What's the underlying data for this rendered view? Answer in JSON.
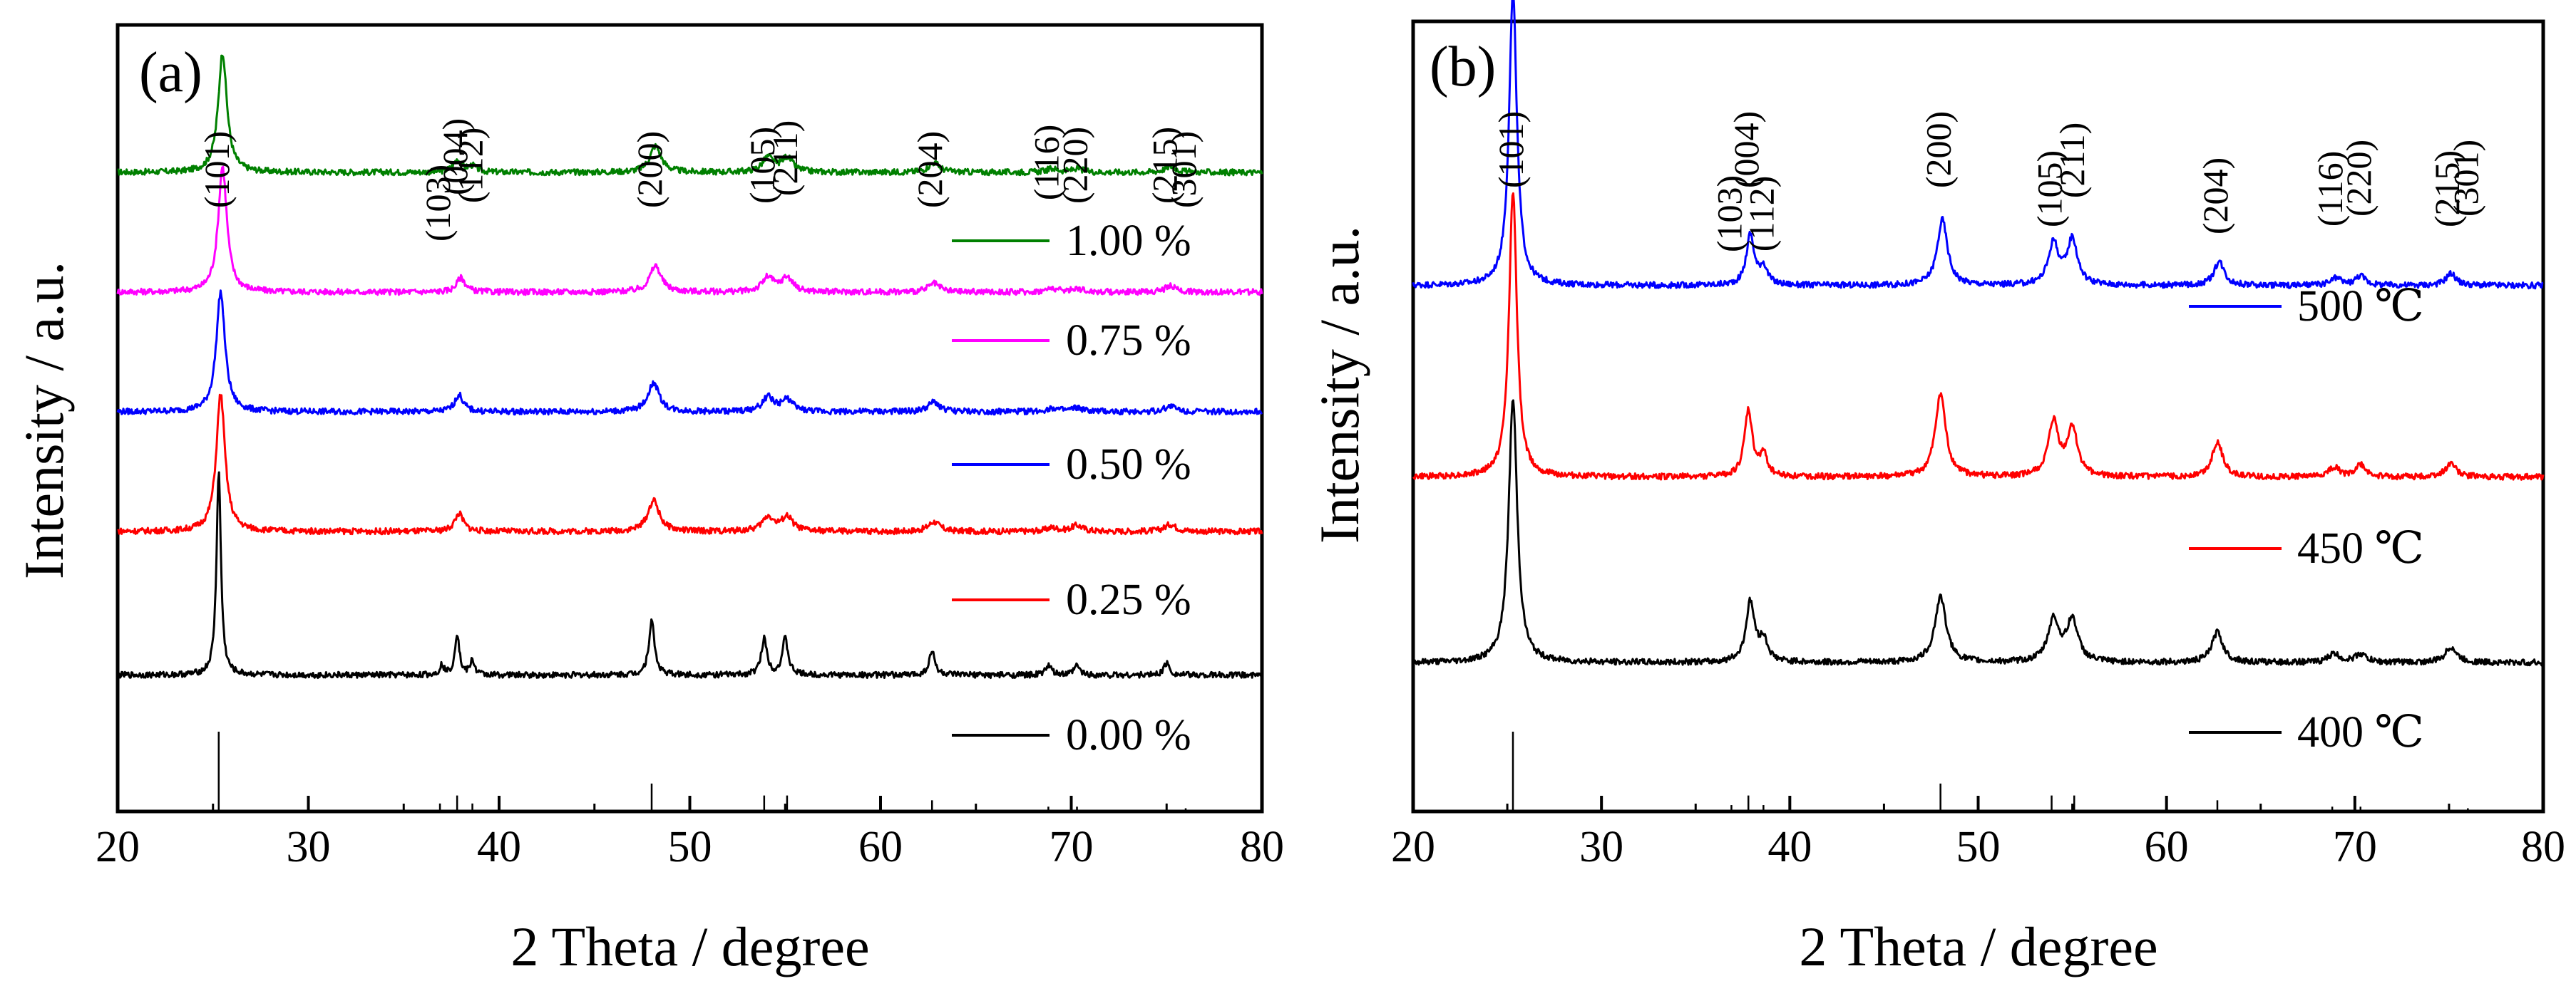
{
  "chart_data": [
    {
      "type": "line",
      "panel_label": "(a)",
      "xlabel": "2 Theta  / degree",
      "ylabel": "Intensity / a.u.",
      "xlim": [
        20,
        80
      ],
      "xticks": [
        "20",
        "30",
        "40",
        "50",
        "60",
        "70",
        "80"
      ],
      "yticks": [],
      "grid": false,
      "legend_position": "right, stacked beside traces",
      "reflections": [
        {
          "label": "(101)",
          "two_theta": 25.3
        },
        {
          "label": "(103)",
          "two_theta": 36.9
        },
        {
          "label": "(004)",
          "two_theta": 37.8
        },
        {
          "label": "(112)",
          "two_theta": 38.6
        },
        {
          "label": "(200)",
          "two_theta": 48.0
        },
        {
          "label": "(105)",
          "two_theta": 53.9
        },
        {
          "label": "(211)",
          "two_theta": 55.1
        },
        {
          "label": "(204)",
          "two_theta": 62.7
        },
        {
          "label": "(116)",
          "two_theta": 68.8
        },
        {
          "label": "(220)",
          "two_theta": 70.3
        },
        {
          "label": "(215)",
          "two_theta": 75.0
        },
        {
          "label": "(301)",
          "two_theta": 76.0
        }
      ],
      "reference_peaks": [
        {
          "two_theta": 25.3,
          "intensity": 1.0
        },
        {
          "two_theta": 36.9,
          "intensity": 0.1
        },
        {
          "two_theta": 37.8,
          "intensity": 0.2
        },
        {
          "two_theta": 38.6,
          "intensity": 0.1
        },
        {
          "two_theta": 48.0,
          "intensity": 0.35
        },
        {
          "two_theta": 53.9,
          "intensity": 0.2
        },
        {
          "two_theta": 55.1,
          "intensity": 0.2
        },
        {
          "two_theta": 62.7,
          "intensity": 0.14
        },
        {
          "two_theta": 68.8,
          "intensity": 0.06
        },
        {
          "two_theta": 70.3,
          "intensity": 0.06
        },
        {
          "two_theta": 75.0,
          "intensity": 0.1
        },
        {
          "two_theta": 76.0,
          "intensity": 0.04
        }
      ],
      "series": [
        {
          "name": "1.00 %",
          "color": "#008000",
          "offset": 4.0,
          "width": 0.55,
          "peaks": [
            [
              25.5,
              1.0
            ],
            [
              37.8,
              0.1
            ],
            [
              38.6,
              0.05
            ],
            [
              48.2,
              0.22
            ],
            [
              54.1,
              0.12
            ],
            [
              55.1,
              0.12
            ],
            [
              62.8,
              0.08
            ],
            [
              69.0,
              0.03
            ],
            [
              70.3,
              0.03
            ],
            [
              75.2,
              0.05
            ]
          ]
        },
        {
          "name": "0.75 %",
          "color": "#ff00ff",
          "offset": 3.0,
          "width": 0.55,
          "peaks": [
            [
              25.5,
              1.05
            ],
            [
              38.0,
              0.12
            ],
            [
              48.2,
              0.22
            ],
            [
              54.1,
              0.12
            ],
            [
              55.1,
              0.12
            ],
            [
              62.8,
              0.07
            ],
            [
              69.0,
              0.03
            ],
            [
              70.3,
              0.03
            ],
            [
              75.2,
              0.05
            ]
          ]
        },
        {
          "name": "0.50 %",
          "color": "#0000ff",
          "offset": 2.0,
          "width": 0.55,
          "peaks": [
            [
              25.4,
              1.0
            ],
            [
              37.9,
              0.14
            ],
            [
              48.1,
              0.24
            ],
            [
              54.1,
              0.12
            ],
            [
              55.1,
              0.1
            ],
            [
              62.8,
              0.08
            ],
            [
              69.0,
              0.03
            ],
            [
              70.3,
              0.03
            ],
            [
              75.2,
              0.05
            ]
          ]
        },
        {
          "name": "0.25 %",
          "color": "#ff0000",
          "offset": 1.0,
          "width": 0.55,
          "peaks": [
            [
              25.4,
              1.15
            ],
            [
              37.9,
              0.15
            ],
            [
              48.1,
              0.26
            ],
            [
              54.1,
              0.12
            ],
            [
              55.1,
              0.12
            ],
            [
              62.8,
              0.08
            ],
            [
              69.0,
              0.03
            ],
            [
              70.3,
              0.05
            ],
            [
              75.2,
              0.06
            ]
          ]
        },
        {
          "name": "0.00 %",
          "color": "#000000",
          "offset": -0.2,
          "width": 0.28,
          "peaks": [
            [
              25.3,
              1.7
            ],
            [
              37.0,
              0.08
            ],
            [
              37.8,
              0.35
            ],
            [
              38.6,
              0.12
            ],
            [
              48.0,
              0.45
            ],
            [
              53.9,
              0.3
            ],
            [
              55.0,
              0.3
            ],
            [
              62.7,
              0.2
            ],
            [
              68.8,
              0.08
            ],
            [
              70.3,
              0.08
            ],
            [
              75.0,
              0.1
            ]
          ]
        }
      ]
    },
    {
      "type": "line",
      "panel_label": "(b)",
      "xlabel": "2 Theta / degree",
      "ylabel": "Intensity / a.u.",
      "xlim": [
        20,
        80
      ],
      "xticks": [
        "20",
        "30",
        "40",
        "50",
        "60",
        "70",
        "80"
      ],
      "yticks": [],
      "grid": false,
      "legend_position": "right, stacked beside traces",
      "reflections": [
        {
          "label": "(101)",
          "two_theta": 25.3
        },
        {
          "label": "(103)",
          "two_theta": 36.9
        },
        {
          "label": "(004)",
          "two_theta": 37.8
        },
        {
          "label": "(112)",
          "two_theta": 38.6
        },
        {
          "label": "(200)",
          "two_theta": 48.0
        },
        {
          "label": "(105)",
          "two_theta": 53.9
        },
        {
          "label": "(211)",
          "two_theta": 55.1
        },
        {
          "label": "(204)",
          "two_theta": 62.7
        },
        {
          "label": "(116)",
          "two_theta": 68.8
        },
        {
          "label": "(220)",
          "two_theta": 70.3
        },
        {
          "label": "(215)",
          "two_theta": 75.0
        },
        {
          "label": "(301)",
          "two_theta": 76.0
        }
      ],
      "reference_peaks": [
        {
          "two_theta": 25.3,
          "intensity": 1.0
        },
        {
          "two_theta": 36.9,
          "intensity": 0.08
        },
        {
          "two_theta": 37.8,
          "intensity": 0.2
        },
        {
          "two_theta": 38.6,
          "intensity": 0.08
        },
        {
          "two_theta": 48.0,
          "intensity": 0.35
        },
        {
          "two_theta": 53.9,
          "intensity": 0.2
        },
        {
          "two_theta": 55.1,
          "intensity": 0.2
        },
        {
          "two_theta": 62.7,
          "intensity": 0.14
        },
        {
          "two_theta": 68.8,
          "intensity": 0.06
        },
        {
          "two_theta": 70.3,
          "intensity": 0.06
        },
        {
          "two_theta": 75.0,
          "intensity": 0.08
        },
        {
          "two_theta": 76.0,
          "intensity": 0.04
        }
      ],
      "series": [
        {
          "name": "500 ℃",
          "color": "#0000ff",
          "offset": 3.15,
          "width": 0.5,
          "peaks": [
            [
              25.3,
              2.45
            ],
            [
              37.9,
              0.42
            ],
            [
              38.6,
              0.15
            ],
            [
              48.1,
              0.55
            ],
            [
              54.0,
              0.35
            ],
            [
              55.0,
              0.38
            ],
            [
              62.8,
              0.2
            ],
            [
              69.0,
              0.06
            ],
            [
              70.3,
              0.08
            ],
            [
              75.1,
              0.1
            ]
          ]
        },
        {
          "name": "450 ℃",
          "color": "#ff0000",
          "offset": 1.55,
          "width": 0.5,
          "peaks": [
            [
              25.3,
              2.4
            ],
            [
              37.8,
              0.55
            ],
            [
              38.6,
              0.18
            ],
            [
              48.0,
              0.7
            ],
            [
              54.0,
              0.45
            ],
            [
              55.0,
              0.4
            ],
            [
              62.7,
              0.3
            ],
            [
              68.9,
              0.08
            ],
            [
              70.3,
              0.1
            ],
            [
              75.1,
              0.12
            ]
          ]
        },
        {
          "name": "400 ℃",
          "color": "#000000",
          "offset": 0.0,
          "width": 0.55,
          "peaks": [
            [
              25.3,
              2.2
            ],
            [
              37.9,
              0.5
            ],
            [
              38.6,
              0.18
            ],
            [
              48.0,
              0.55
            ],
            [
              54.0,
              0.35
            ],
            [
              55.0,
              0.35
            ],
            [
              62.7,
              0.25
            ],
            [
              68.9,
              0.07
            ],
            [
              70.3,
              0.07
            ],
            [
              75.1,
              0.13
            ]
          ]
        }
      ]
    }
  ]
}
